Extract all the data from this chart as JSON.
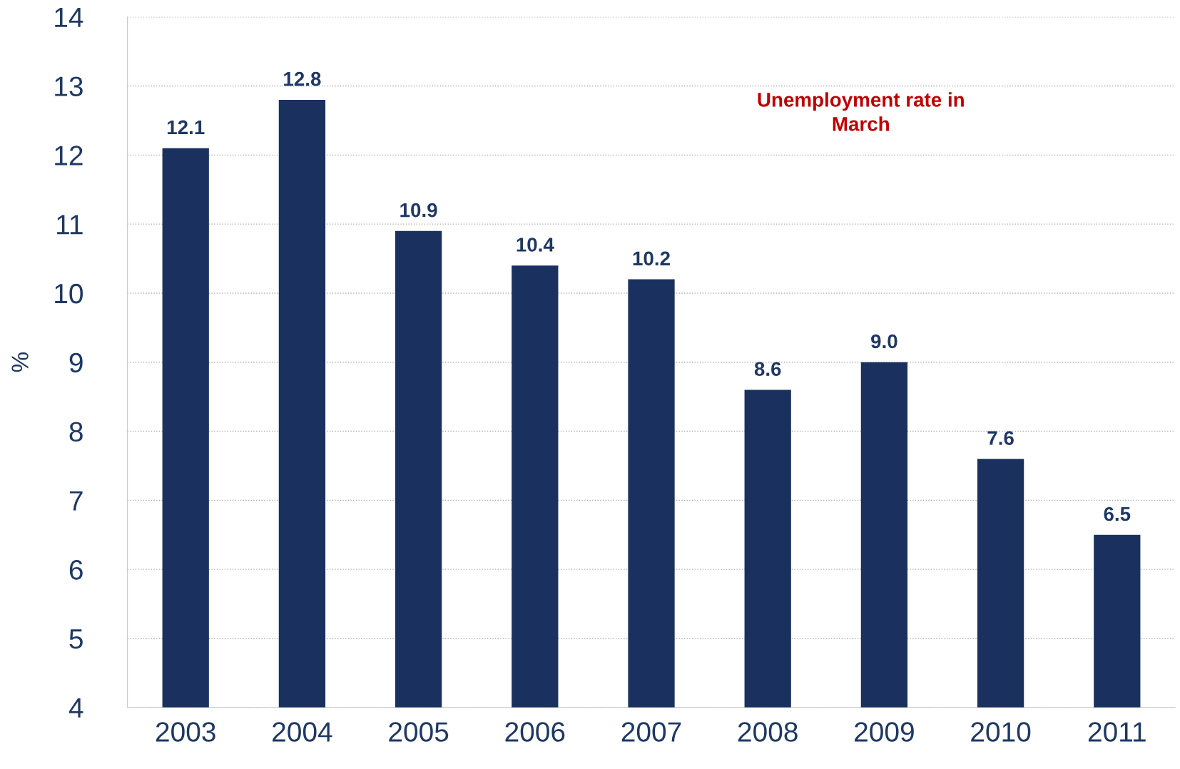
{
  "chart_data": {
    "type": "bar",
    "ylabel": "%",
    "categories": [
      "2003",
      "2004",
      "2005",
      "2006",
      "2007",
      "2008",
      "2009",
      "2010",
      "2011"
    ],
    "values": [
      12.1,
      12.8,
      10.9,
      10.4,
      10.2,
      8.6,
      9.0,
      7.6,
      6.5
    ],
    "color": "#1a3160",
    "ylim": [
      4,
      14
    ],
    "yticks": [
      4,
      5,
      6,
      7,
      8,
      9,
      10,
      11,
      12,
      13,
      14
    ],
    "grid": "y",
    "value_labels": [
      "12.1",
      "12.8",
      "10.9",
      "10.4",
      "10.2",
      "8.6",
      "9.0",
      "7.6",
      "6.5"
    ],
    "annotations": [
      "Unemployment rate in\nMarch"
    ]
  }
}
